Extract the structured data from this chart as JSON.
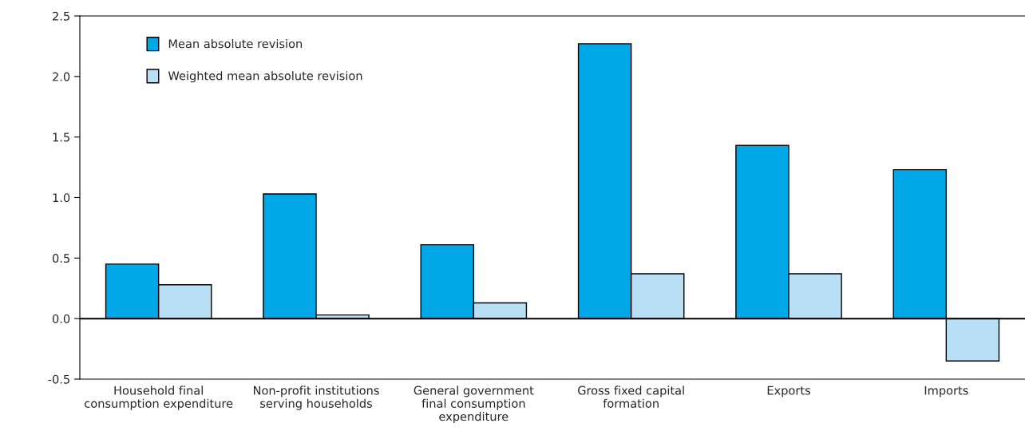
{
  "chart_data": {
    "type": "bar",
    "categories": [
      "Household final\nconsumption expenditure",
      "Non-profit institutions\nserving households",
      "General government\nfinal consumption\nexpenditure",
      "Gross fixed capital\nformation",
      "Exports",
      "Imports"
    ],
    "series": [
      {
        "name": "Mean absolute revision",
        "color": "#00a8e8",
        "values": [
          0.45,
          1.03,
          0.61,
          2.27,
          1.43,
          1.23
        ]
      },
      {
        "name": "Weighted mean absolute revision",
        "color": "#b8dff5",
        "values": [
          0.28,
          0.03,
          0.13,
          0.37,
          0.37,
          -0.35
        ]
      }
    ],
    "ylim": [
      -0.5,
      2.5
    ],
    "yticks": [
      {
        "value": -0.5,
        "label": "-0.5"
      },
      {
        "value": 0,
        "label": "0.0"
      },
      {
        "value": 0.5,
        "label": "0.5"
      },
      {
        "value": 1,
        "label": "1.0"
      },
      {
        "value": 1.5,
        "label": "1.5"
      },
      {
        "value": 2,
        "label": "2.0"
      },
      {
        "value": 2.5,
        "label": "2.5"
      }
    ],
    "ref_lines": [
      {
        "axis": "y",
        "value": 0,
        "color": "#000000"
      }
    ],
    "grid": false,
    "legend": "top left"
  }
}
